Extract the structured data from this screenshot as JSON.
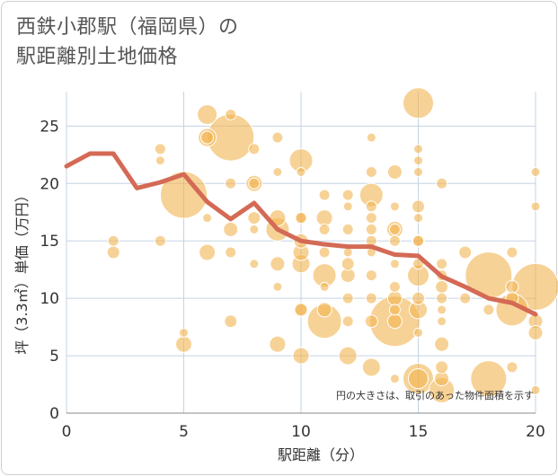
{
  "title": {
    "line1": "西鉄小郡駅（福岡県）の",
    "line2": "駅距離別土地価格"
  },
  "chart_data": {
    "type": "scatter",
    "title": "西鉄小郡駅（福岡県）の駅距離別土地価格",
    "xlabel": "駅距離（分）",
    "ylabel": "坪（3.3㎡）単価（万円）",
    "xlim": [
      0,
      20
    ],
    "ylim": [
      0,
      28
    ],
    "xticks": [
      0,
      5,
      10,
      15,
      20
    ],
    "yticks": [
      0,
      5,
      10,
      15,
      20,
      25
    ],
    "grid": true,
    "annotation": "円の大きさは、取引のあった物件面積を示す",
    "colors": {
      "bubble": "#f2b450",
      "line": "#d46a55",
      "grid": "#c5d3e3"
    },
    "bubbles": [
      {
        "x": 2,
        "y": 15,
        "s": 6
      },
      {
        "x": 2,
        "y": 14,
        "s": 7
      },
      {
        "x": 4,
        "y": 23,
        "s": 6
      },
      {
        "x": 4,
        "y": 22,
        "s": 5
      },
      {
        "x": 4,
        "y": 15,
        "s": 6
      },
      {
        "x": 5,
        "y": 19,
        "s": 26
      },
      {
        "x": 5,
        "y": 7,
        "s": 5
      },
      {
        "x": 5,
        "y": 6,
        "s": 9
      },
      {
        "x": 6,
        "y": 26,
        "s": 11
      },
      {
        "x": 6,
        "y": 24,
        "s": 10
      },
      {
        "x": 6,
        "y": 24,
        "s": 7
      },
      {
        "x": 6,
        "y": 14,
        "s": 9
      },
      {
        "x": 6,
        "y": 17,
        "s": 5
      },
      {
        "x": 7,
        "y": 26,
        "s": 6
      },
      {
        "x": 7,
        "y": 24,
        "s": 26
      },
      {
        "x": 7,
        "y": 20,
        "s": 6
      },
      {
        "x": 7,
        "y": 16,
        "s": 8
      },
      {
        "x": 7,
        "y": 14,
        "s": 6
      },
      {
        "x": 7,
        "y": 8,
        "s": 7
      },
      {
        "x": 8,
        "y": 23,
        "s": 6
      },
      {
        "x": 8,
        "y": 20,
        "s": 9
      },
      {
        "x": 8,
        "y": 20,
        "s": 6
      },
      {
        "x": 8,
        "y": 17,
        "s": 7
      },
      {
        "x": 8,
        "y": 16,
        "s": 5
      },
      {
        "x": 8,
        "y": 13,
        "s": 5
      },
      {
        "x": 9,
        "y": 24,
        "s": 6
      },
      {
        "x": 9,
        "y": 21,
        "s": 5
      },
      {
        "x": 9,
        "y": 17,
        "s": 9
      },
      {
        "x": 9,
        "y": 16,
        "s": 13
      },
      {
        "x": 9,
        "y": 13,
        "s": 8
      },
      {
        "x": 9,
        "y": 11,
        "s": 5
      },
      {
        "x": 9,
        "y": 6,
        "s": 9
      },
      {
        "x": 10,
        "y": 22,
        "s": 13
      },
      {
        "x": 10,
        "y": 21,
        "s": 5
      },
      {
        "x": 10,
        "y": 17,
        "s": 6
      },
      {
        "x": 10,
        "y": 17,
        "s": 7
      },
      {
        "x": 10,
        "y": 15,
        "s": 8
      },
      {
        "x": 10,
        "y": 14,
        "s": 9
      },
      {
        "x": 10,
        "y": 13,
        "s": 10
      },
      {
        "x": 10,
        "y": 9,
        "s": 8
      },
      {
        "x": 10,
        "y": 9,
        "s": 7
      },
      {
        "x": 10,
        "y": 5,
        "s": 9
      },
      {
        "x": 11,
        "y": 19,
        "s": 6
      },
      {
        "x": 11,
        "y": 17,
        "s": 9
      },
      {
        "x": 11,
        "y": 16,
        "s": 6
      },
      {
        "x": 11,
        "y": 14,
        "s": 6
      },
      {
        "x": 11,
        "y": 12,
        "s": 13
      },
      {
        "x": 11,
        "y": 11,
        "s": 5
      },
      {
        "x": 11,
        "y": 9,
        "s": 8
      },
      {
        "x": 11,
        "y": 8,
        "s": 19
      },
      {
        "x": 12,
        "y": 19,
        "s": 6
      },
      {
        "x": 12,
        "y": 18,
        "s": 5
      },
      {
        "x": 12,
        "y": 16,
        "s": 6
      },
      {
        "x": 12,
        "y": 14,
        "s": 5
      },
      {
        "x": 12,
        "y": 13,
        "s": 7
      },
      {
        "x": 12,
        "y": 12,
        "s": 8
      },
      {
        "x": 12,
        "y": 10,
        "s": 6
      },
      {
        "x": 12,
        "y": 8,
        "s": 6
      },
      {
        "x": 12,
        "y": 5,
        "s": 10
      },
      {
        "x": 13,
        "y": 24,
        "s": 5
      },
      {
        "x": 13,
        "y": 21,
        "s": 6
      },
      {
        "x": 13,
        "y": 19,
        "s": 13
      },
      {
        "x": 13,
        "y": 18,
        "s": 6
      },
      {
        "x": 13,
        "y": 17,
        "s": 6
      },
      {
        "x": 13,
        "y": 16,
        "s": 6
      },
      {
        "x": 13,
        "y": 15,
        "s": 6
      },
      {
        "x": 13,
        "y": 14,
        "s": 5
      },
      {
        "x": 13,
        "y": 12,
        "s": 6
      },
      {
        "x": 13,
        "y": 10,
        "s": 6
      },
      {
        "x": 13,
        "y": 8,
        "s": 7
      },
      {
        "x": 13,
        "y": 4,
        "s": 10
      },
      {
        "x": 14,
        "y": 21,
        "s": 8
      },
      {
        "x": 14,
        "y": 18,
        "s": 5
      },
      {
        "x": 14,
        "y": 16,
        "s": 9
      },
      {
        "x": 14,
        "y": 16,
        "s": 6
      },
      {
        "x": 14,
        "y": 15,
        "s": 6
      },
      {
        "x": 14,
        "y": 13,
        "s": 5
      },
      {
        "x": 14,
        "y": 11,
        "s": 6
      },
      {
        "x": 14,
        "y": 10,
        "s": 8
      },
      {
        "x": 14,
        "y": 9,
        "s": 6
      },
      {
        "x": 14,
        "y": 8,
        "s": 28
      },
      {
        "x": 14,
        "y": 8,
        "s": 8
      },
      {
        "x": 14,
        "y": 3,
        "s": 5
      },
      {
        "x": 15,
        "y": 27,
        "s": 17
      },
      {
        "x": 15,
        "y": 23,
        "s": 5
      },
      {
        "x": 15,
        "y": 22,
        "s": 5
      },
      {
        "x": 15,
        "y": 21,
        "s": 5
      },
      {
        "x": 15,
        "y": 18,
        "s": 7
      },
      {
        "x": 15,
        "y": 17,
        "s": 5
      },
      {
        "x": 15,
        "y": 15,
        "s": 7
      },
      {
        "x": 15,
        "y": 15,
        "s": 6
      },
      {
        "x": 15,
        "y": 13,
        "s": 6
      },
      {
        "x": 15,
        "y": 12,
        "s": 12
      },
      {
        "x": 15,
        "y": 10,
        "s": 7
      },
      {
        "x": 15,
        "y": 9,
        "s": 10
      },
      {
        "x": 15,
        "y": 7,
        "s": 5
      },
      {
        "x": 15,
        "y": 3,
        "s": 17
      },
      {
        "x": 15,
        "y": 3,
        "s": 11
      },
      {
        "x": 16,
        "y": 20,
        "s": 6
      },
      {
        "x": 16,
        "y": 13,
        "s": 6
      },
      {
        "x": 16,
        "y": 12,
        "s": 6
      },
      {
        "x": 16,
        "y": 11,
        "s": 7
      },
      {
        "x": 16,
        "y": 10,
        "s": 6
      },
      {
        "x": 16,
        "y": 9,
        "s": 5
      },
      {
        "x": 16,
        "y": 8,
        "s": 5
      },
      {
        "x": 16,
        "y": 6,
        "s": 8
      },
      {
        "x": 16,
        "y": 4,
        "s": 7
      },
      {
        "x": 16,
        "y": 3,
        "s": 8
      },
      {
        "x": 16,
        "y": 2,
        "s": 14
      },
      {
        "x": 17,
        "y": 14,
        "s": 7
      },
      {
        "x": 17,
        "y": 10,
        "s": 6
      },
      {
        "x": 18,
        "y": 12,
        "s": 26
      },
      {
        "x": 18,
        "y": 9,
        "s": 6
      },
      {
        "x": 18,
        "y": 3,
        "s": 20
      },
      {
        "x": 19,
        "y": 14,
        "s": 6
      },
      {
        "x": 19,
        "y": 11,
        "s": 7
      },
      {
        "x": 19,
        "y": 10,
        "s": 7
      },
      {
        "x": 19,
        "y": 9,
        "s": 18
      },
      {
        "x": 19,
        "y": 4,
        "s": 6
      },
      {
        "x": 20,
        "y": 21,
        "s": 5
      },
      {
        "x": 20,
        "y": 18,
        "s": 5
      },
      {
        "x": 20,
        "y": 11,
        "s": 26
      },
      {
        "x": 20,
        "y": 8,
        "s": 8
      },
      {
        "x": 20,
        "y": 7,
        "s": 8
      },
      {
        "x": 20,
        "y": 2,
        "s": 5
      }
    ],
    "line": {
      "x": [
        0,
        1,
        2,
        3,
        4,
        5,
        6,
        7,
        8,
        9,
        10,
        11,
        12,
        13,
        14,
        15,
        16,
        17,
        18,
        19,
        20
      ],
      "y": [
        21.5,
        22.6,
        22.6,
        19.6,
        20.1,
        20.8,
        18.4,
        16.9,
        18.3,
        16.0,
        15.0,
        14.7,
        14.5,
        14.5,
        13.8,
        13.7,
        11.9,
        11.0,
        10.0,
        9.6,
        8.6
      ]
    }
  }
}
